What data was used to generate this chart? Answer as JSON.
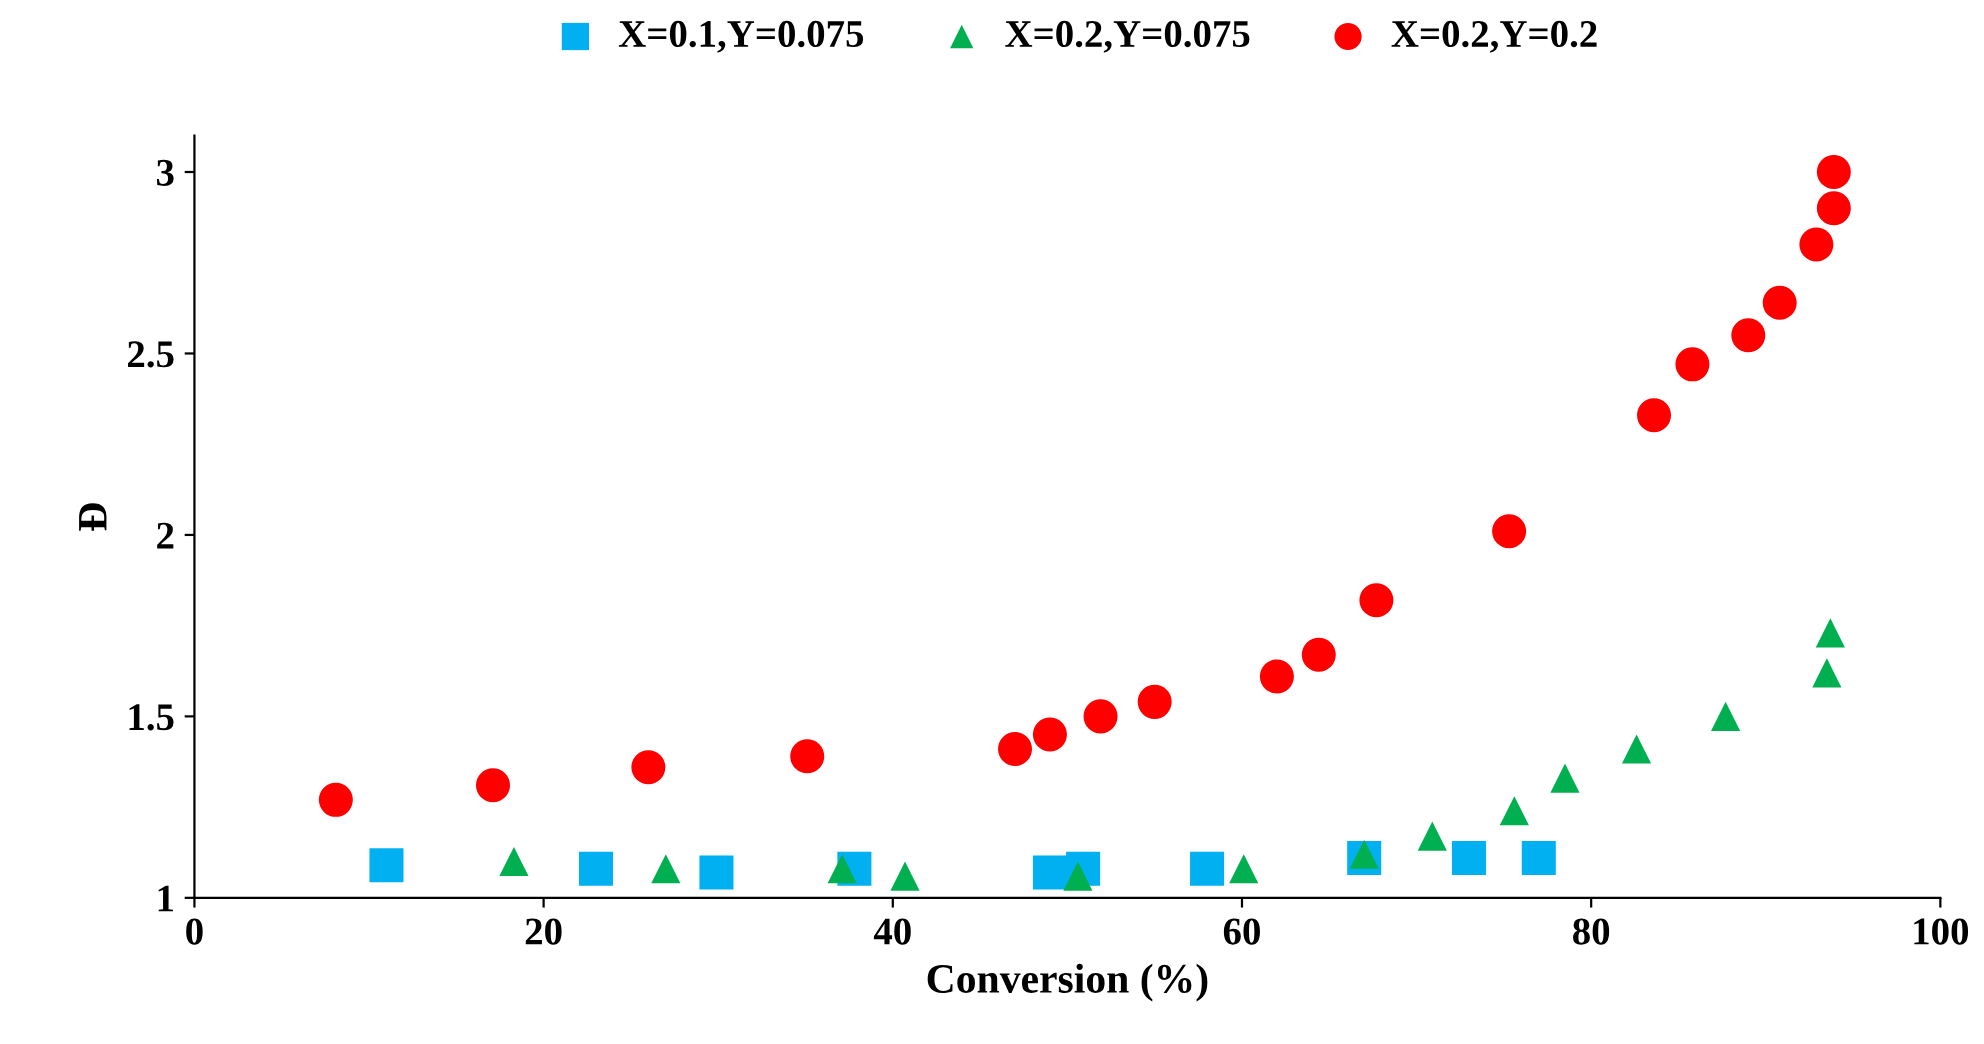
{
  "chart_data": {
    "type": "scatter",
    "xlabel": "Conversion (%)",
    "ylabel": "Đ",
    "xlim": [
      0,
      100
    ],
    "xticks": [
      0,
      20,
      40,
      60,
      80,
      100
    ],
    "ylim": [
      1,
      3.1
    ],
    "yticks": [
      1,
      1.5,
      2,
      2.5,
      3
    ],
    "grid": false,
    "legend": "top",
    "series": [
      {
        "name": "X=0.1,Y=0.075",
        "color": "#00b0f0",
        "marker": "square",
        "x": [
          11.0,
          23.0,
          29.9,
          37.8,
          49.0,
          50.9,
          58.0,
          67.0,
          73.0,
          77.0
        ],
        "values": [
          1.09,
          1.08,
          1.07,
          1.08,
          1.07,
          1.08,
          1.08,
          1.11,
          1.11,
          1.11
        ]
      },
      {
        "name": "X=0.2,Y=0.075",
        "color": "#00b050",
        "marker": "triangle",
        "x": [
          18.3,
          27.0,
          37.1,
          40.7,
          50.6,
          60.1,
          67.0,
          70.9,
          75.6,
          78.5,
          82.6,
          87.7,
          93.5,
          93.7
        ],
        "values": [
          1.1,
          1.08,
          1.08,
          1.06,
          1.06,
          1.08,
          1.12,
          1.17,
          1.24,
          1.33,
          1.41,
          1.5,
          1.62,
          1.73
        ]
      },
      {
        "name": "X=0.2,Y=0.2",
        "color": "#ff0000",
        "marker": "circle",
        "x": [
          8.1,
          17.1,
          26.0,
          35.1,
          47.0,
          49.0,
          51.9,
          55.0,
          62.0,
          64.4,
          67.7,
          75.3,
          83.6,
          85.8,
          89.0,
          90.8,
          92.9,
          93.9,
          93.9
        ],
        "values": [
          1.27,
          1.31,
          1.36,
          1.39,
          1.41,
          1.45,
          1.5,
          1.54,
          1.61,
          1.67,
          1.82,
          2.01,
          2.33,
          2.47,
          2.55,
          2.64,
          2.8,
          2.9,
          3.0
        ]
      }
    ]
  }
}
